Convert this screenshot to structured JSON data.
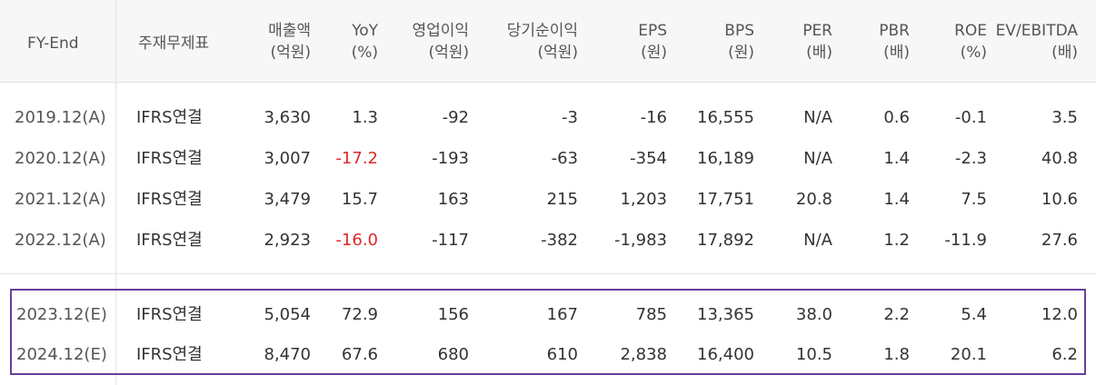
{
  "header": {
    "fy_end": "FY-End",
    "main_statement": "주재무제표",
    "revenue": [
      "매출액",
      "(억원)"
    ],
    "yoy": [
      "YoY",
      "(%)"
    ],
    "op_income": [
      "영업이익",
      "(억원)"
    ],
    "net_income": [
      "당기순이익",
      "(억원)"
    ],
    "eps": [
      "EPS",
      "(원)"
    ],
    "bps": [
      "BPS",
      "(원)"
    ],
    "per": [
      "PER",
      "(배)"
    ],
    "pbr": [
      "PBR",
      "(배)"
    ],
    "roe": [
      "ROE",
      "(%)"
    ],
    "ev_ebitda": [
      "EV/EBITDA",
      "(배)"
    ]
  },
  "rows": [
    {
      "fy": "2019.12(A)",
      "stmt": "IFRS연결",
      "revenue": "3,630",
      "yoy": "1.3",
      "op": "-92",
      "net": "-3",
      "eps": "-16",
      "bps": "16,555",
      "per": "N/A",
      "pbr": "0.6",
      "roe": "-0.1",
      "ev": "3.5"
    },
    {
      "fy": "2020.12(A)",
      "stmt": "IFRS연결",
      "revenue": "3,007",
      "yoy": "-17.2",
      "op": "-193",
      "net": "-63",
      "eps": "-354",
      "bps": "16,189",
      "per": "N/A",
      "pbr": "1.4",
      "roe": "-2.3",
      "ev": "40.8"
    },
    {
      "fy": "2021.12(A)",
      "stmt": "IFRS연결",
      "revenue": "3,479",
      "yoy": "15.7",
      "op": "163",
      "net": "215",
      "eps": "1,203",
      "bps": "17,751",
      "per": "20.8",
      "pbr": "1.4",
      "roe": "7.5",
      "ev": "10.6"
    },
    {
      "fy": "2022.12(A)",
      "stmt": "IFRS연결",
      "revenue": "2,923",
      "yoy": "-16.0",
      "op": "-117",
      "net": "-382",
      "eps": "-1,983",
      "bps": "17,892",
      "per": "N/A",
      "pbr": "1.2",
      "roe": "-11.9",
      "ev": "27.6"
    },
    {
      "fy": "2023.12(E)",
      "stmt": "IFRS연결",
      "revenue": "5,054",
      "yoy": "72.9",
      "op": "156",
      "net": "167",
      "eps": "785",
      "bps": "13,365",
      "per": "38.0",
      "pbr": "2.2",
      "roe": "5.4",
      "ev": "12.0"
    },
    {
      "fy": "2024.12(E)",
      "stmt": "IFRS연결",
      "revenue": "8,470",
      "yoy": "67.6",
      "op": "680",
      "net": "610",
      "eps": "2,838",
      "bps": "16,400",
      "per": "10.5",
      "pbr": "1.8",
      "roe": "20.1",
      "ev": "6.2"
    }
  ],
  "colors": {
    "negative_yoy": "#e02828",
    "highlight_border": "#6a3d9a"
  }
}
